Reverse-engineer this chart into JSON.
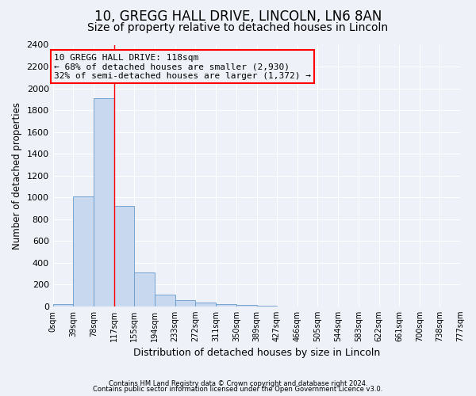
{
  "title1": "10, GREGG HALL DRIVE, LINCOLN, LN6 8AN",
  "title2": "Size of property relative to detached houses in Lincoln",
  "xlabel": "Distribution of detached houses by size in Lincoln",
  "ylabel": "Number of detached properties",
  "footnote1": "Contains HM Land Registry data © Crown copyright and database right 2024.",
  "footnote2": "Contains public sector information licensed under the Open Government Licence v3.0.",
  "bin_edges": [
    0,
    39,
    78,
    117,
    155,
    194,
    233,
    272,
    311,
    350,
    389,
    427,
    466,
    505,
    544,
    583,
    622,
    661,
    700,
    738,
    777
  ],
  "bar_heights": [
    20,
    1010,
    1910,
    920,
    310,
    110,
    55,
    35,
    20,
    10,
    5,
    0,
    0,
    0,
    0,
    0,
    0,
    0,
    0,
    0
  ],
  "bar_color": "#c8d8ee",
  "bar_edge_color": "#6699cc",
  "vline_x": 117,
  "vline_color": "red",
  "ylim": [
    0,
    2400
  ],
  "yticks": [
    0,
    200,
    400,
    600,
    800,
    1000,
    1200,
    1400,
    1600,
    1800,
    2000,
    2200,
    2400
  ],
  "annotation_line1": "10 GREGG HALL DRIVE: 118sqm",
  "annotation_line2": "← 68% of detached houses are smaller (2,930)",
  "annotation_line3": "32% of semi-detached houses are larger (1,372) →",
  "bg_color": "#eef2f8",
  "grid_color": "#ffffff",
  "title1_fontsize": 12,
  "title2_fontsize": 10,
  "annotation_fontsize": 8,
  "ylabel_fontsize": 8.5,
  "xlabel_fontsize": 9
}
